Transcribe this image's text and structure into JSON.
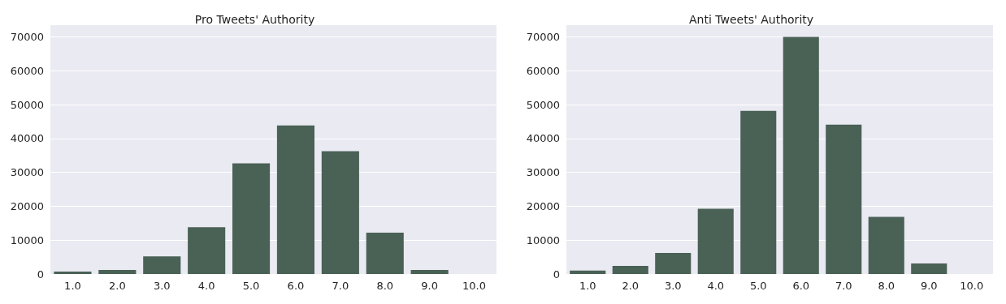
{
  "chart_data": [
    {
      "type": "bar",
      "title": "Pro Tweets' Authority",
      "categories": [
        "1.0",
        "2.0",
        "3.0",
        "4.0",
        "5.0",
        "6.0",
        "7.0",
        "8.0",
        "9.0",
        "10.0"
      ],
      "values": [
        700,
        1200,
        5200,
        13800,
        32700,
        43900,
        36300,
        12200,
        1200,
        0
      ],
      "color": "#4a6156",
      "ylim": [
        0,
        73500
      ],
      "yticks": [
        0,
        10000,
        20000,
        30000,
        40000,
        50000,
        60000,
        70000
      ],
      "grid": "y"
    },
    {
      "type": "bar",
      "title": "Anti Tweets' Authority",
      "categories": [
        "1.0",
        "2.0",
        "3.0",
        "4.0",
        "5.0",
        "6.0",
        "7.0",
        "8.0",
        "9.0",
        "10.0"
      ],
      "values": [
        1000,
        2400,
        6200,
        19300,
        48200,
        70000,
        44100,
        16900,
        3100,
        0
      ],
      "color": "#4a6156",
      "ylim": [
        0,
        73500
      ],
      "yticks": [
        0,
        10000,
        20000,
        30000,
        40000,
        50000,
        60000,
        70000
      ],
      "grid": "y"
    }
  ]
}
